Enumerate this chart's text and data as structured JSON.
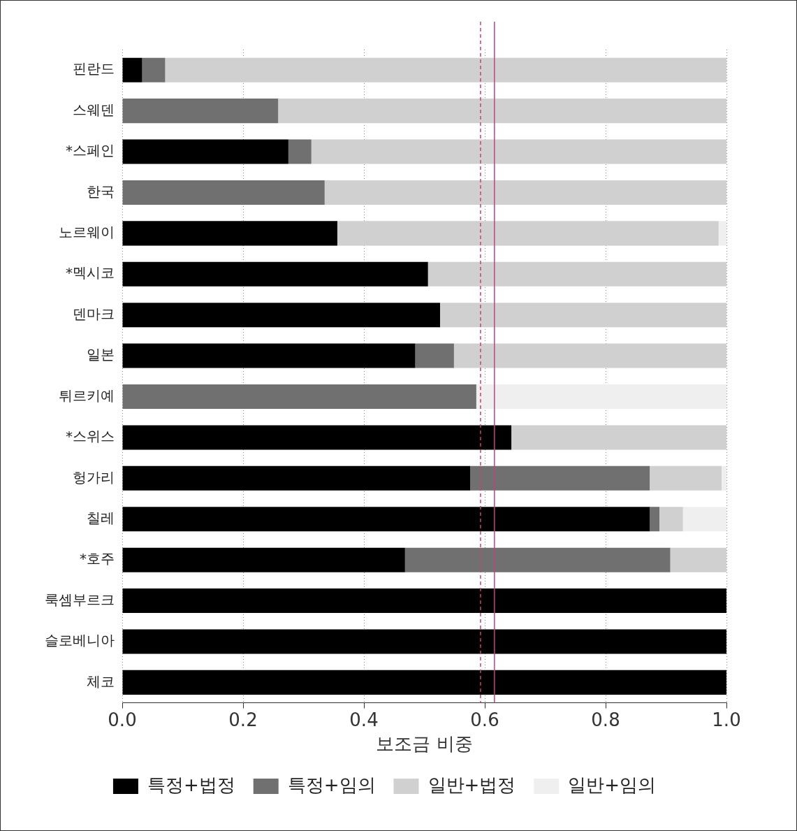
{
  "chart_data": {
    "type": "bar",
    "orientation": "horizontal",
    "stacked": true,
    "xlabel": "보조금 비중",
    "categories": [
      "핀란드",
      "스웨덴",
      "*스페인",
      "한국",
      "노르웨이",
      "*멕시코",
      "덴마크",
      "일본",
      "튀르키예",
      "*스위스",
      "헝가리",
      "칠레",
      "*호주",
      "룩셈부르크",
      "슬로베니아",
      "체코"
    ],
    "series": [
      {
        "name": "특정+법정",
        "color": "#000000",
        "values": [
          0.033,
          0,
          0.275,
          0,
          0.356,
          0.506,
          0.526,
          0.485,
          0,
          0.644,
          0.576,
          0.873,
          0.468,
          1,
          1,
          1
        ]
      },
      {
        "name": "특정+임의",
        "color": "#707070",
        "values": [
          0.038,
          0.258,
          0.038,
          0.335,
          0,
          0,
          0,
          0.064,
          0.586,
          0,
          0.297,
          0.016,
          0.439,
          0,
          0,
          0
        ]
      },
      {
        "name": "일반+법정",
        "color": "#d0d0d0",
        "values": [
          0.929,
          0.742,
          0.687,
          0.665,
          0.631,
          0.494,
          0.474,
          0.451,
          0,
          0.356,
          0.119,
          0.039,
          0.093,
          0,
          0,
          0
        ]
      },
      {
        "name": "일반+임의",
        "color": "#efefef",
        "values": [
          0,
          0,
          0,
          0,
          0.013,
          0,
          0,
          0,
          0.414,
          0,
          0.008,
          0.072,
          0,
          0,
          0,
          0
        ]
      }
    ],
    "xlim": [
      0,
      1
    ],
    "xticks": [
      {
        "value": 0,
        "label": "0.0"
      },
      {
        "value": 0.2,
        "label": "0.2"
      },
      {
        "value": 0.4,
        "label": "0.4"
      },
      {
        "value": 0.6,
        "label": "0.6"
      },
      {
        "value": 0.8,
        "label": "0.8"
      },
      {
        "value": 1,
        "label": "1.0"
      }
    ],
    "ref_lines": [
      {
        "axis": "x",
        "value": 0.593,
        "color": "#c8407a",
        "line_style": "dashed"
      },
      {
        "axis": "x",
        "value": 0.616,
        "color": "#c8407a",
        "line_style": "solid"
      }
    ],
    "grid": "x",
    "legend": "bottom"
  }
}
